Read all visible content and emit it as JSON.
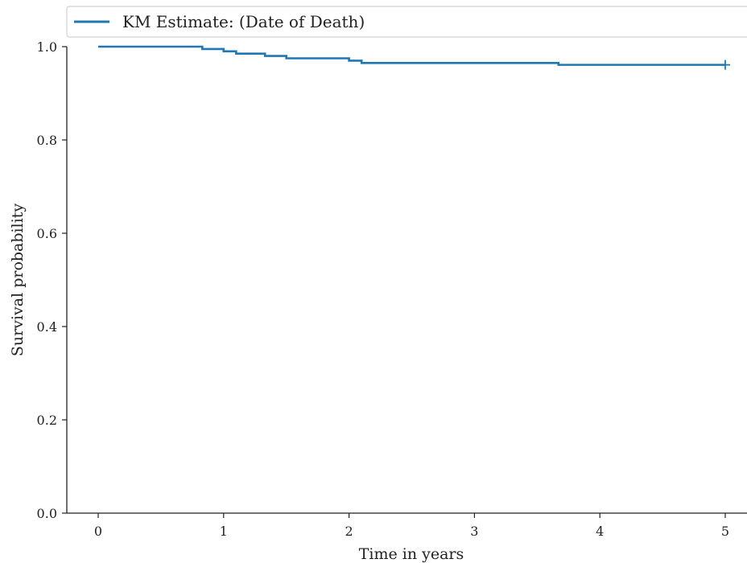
{
  "chart_data": {
    "type": "line",
    "title": "",
    "xlabel": "Time in years",
    "ylabel": "Survival probability",
    "xlim": [
      -0.25,
      5.15
    ],
    "ylim": [
      0.0,
      1.0
    ],
    "x_ticks": [
      0,
      1,
      2,
      3,
      4,
      5
    ],
    "y_ticks": [
      0.0,
      0.2,
      0.4,
      0.6,
      0.8,
      1.0
    ],
    "x_tick_labels": [
      "0",
      "1",
      "2",
      "3",
      "4",
      "5"
    ],
    "y_tick_labels": [
      "0.0",
      "0.2",
      "0.4",
      "0.6",
      "0.8",
      "1.0"
    ],
    "grid": false,
    "legend_position": "top",
    "step": true,
    "series": [
      {
        "name": "KM Estimate: (Date of Death)",
        "color": "#1f77b4",
        "x": [
          0,
          0.83,
          1.0,
          1.1,
          1.33,
          1.5,
          2.0,
          2.1,
          3.67,
          5.0
        ],
        "y": [
          1.0,
          0.995,
          0.99,
          0.985,
          0.98,
          0.975,
          0.97,
          0.965,
          0.961,
          0.961
        ],
        "censored": [
          {
            "x": 5.0,
            "y": 0.961
          }
        ]
      }
    ]
  }
}
